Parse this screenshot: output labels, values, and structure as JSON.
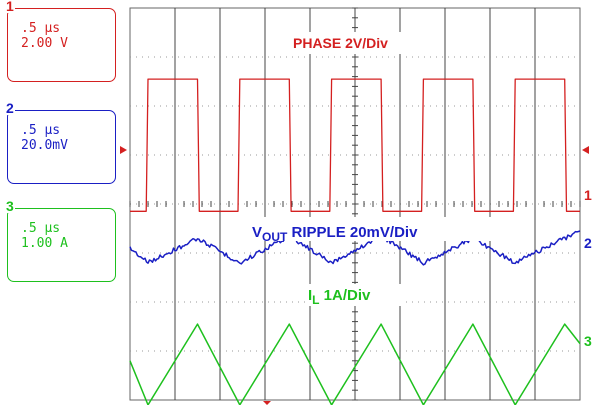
{
  "channels": [
    {
      "num": "1",
      "time": ".5 µs",
      "scale": "2.00 V",
      "color": "#d42020"
    },
    {
      "num": "2",
      "time": ".5 µs",
      "scale": "20.0mV",
      "color": "#1a1fc4"
    },
    {
      "num": "3",
      "time": ".5 µs",
      "scale": "1.00 A",
      "color": "#1ec01e"
    }
  ],
  "labels": {
    "phase": "PHASE 2V/Div",
    "vout_main": "V",
    "vout_sub": "OUT",
    "vout_rest": " RIPPLE  20mV/Div",
    "il_main": "I",
    "il_sub": "L",
    "il_rest": "  1A/Div"
  },
  "markers": {
    "ch1": "1",
    "ch2": "2",
    "ch3": "3"
  },
  "chart_data": {
    "type": "line",
    "grid": "on",
    "time_per_div_us": 0.5,
    "x_divisions": 10,
    "y_divisions": 8,
    "series": [
      {
        "name": "PHASE 2V/Div",
        "color": "#d42020",
        "x_us": [
          0,
          0.18,
          0.2,
          0.75,
          0.77,
          1.2,
          1.22,
          1.77,
          1.79,
          2.22,
          2.24,
          2.79,
          2.81,
          3.24,
          3.26,
          3.81,
          3.83,
          4.26,
          4.28,
          4.83,
          4.85,
          5.0
        ],
        "y_div": [
          -0.15,
          -0.15,
          2.55,
          2.55,
          -0.15,
          -0.15,
          2.55,
          2.55,
          -0.15,
          -0.15,
          2.55,
          2.55,
          -0.15,
          -0.15,
          2.55,
          2.55,
          -0.15,
          -0.15,
          2.55,
          2.55,
          -0.15,
          -0.15
        ]
      },
      {
        "name": "VOUT RIPPLE 20mV/Div",
        "color": "#1a1fc4",
        "x_us": [
          0,
          0.2,
          0.75,
          1.22,
          1.77,
          2.24,
          2.79,
          3.26,
          3.81,
          4.28,
          4.83,
          5.0
        ],
        "y_div": [
          -0.9,
          -1.2,
          -0.7,
          -1.2,
          -0.65,
          -1.2,
          -0.65,
          -1.2,
          -0.7,
          -1.2,
          -0.7,
          -0.55
        ]
      },
      {
        "name": "IL 1A/Div",
        "color": "#1ec01e",
        "x_us": [
          0,
          0.2,
          0.75,
          1.22,
          1.77,
          2.24,
          2.79,
          3.26,
          3.81,
          4.28,
          4.83,
          5.0
        ],
        "y_div": [
          -3.2,
          -4.1,
          -2.45,
          -4.1,
          -2.45,
          -4.1,
          -2.45,
          -4.1,
          -2.45,
          -4.1,
          -2.45,
          -2.85
        ]
      }
    ]
  }
}
